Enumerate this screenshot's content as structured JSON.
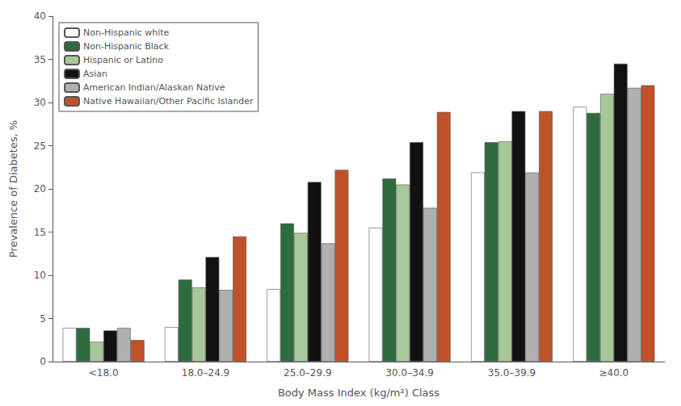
{
  "chart_data": {
    "type": "bar",
    "xlabel": "Body Mass Index (kg/m²) Class",
    "ylabel": "Prevalence of Diabetes, %",
    "categories": [
      "<18.0",
      "18.0–24.9",
      "25.0–29.9",
      "30.0–34.9",
      "35.0–39.9",
      "≥40.0"
    ],
    "series": [
      {
        "name": "Non-Hispanic white",
        "color": "#ffffff",
        "values": [
          3.9,
          4.0,
          8.4,
          15.5,
          21.9,
          29.5
        ]
      },
      {
        "name": "Non-Hispanic Black",
        "color": "#2e6b3e",
        "values": [
          3.9,
          9.5,
          16.0,
          21.2,
          25.4,
          28.8
        ]
      },
      {
        "name": "Hispanic or Latino",
        "color": "#a8c89a",
        "values": [
          2.3,
          8.6,
          14.9,
          20.5,
          25.5,
          31.0
        ]
      },
      {
        "name": "Asian",
        "color": "#111111",
        "values": [
          3.6,
          12.1,
          20.8,
          25.4,
          29.0,
          34.5
        ]
      },
      {
        "name": "American Indian/Alaskan Native",
        "color": "#b0b0b0",
        "values": [
          3.9,
          8.3,
          13.7,
          17.8,
          21.9,
          31.7
        ]
      },
      {
        "name": "Native Hawaiian/Other Pacific Islander",
        "color": "#c0522a",
        "values": [
          2.5,
          14.5,
          22.2,
          28.9,
          29.0,
          32.0
        ]
      }
    ],
    "ylim": [
      0,
      40
    ],
    "yticks": [
      0,
      5,
      10,
      15,
      20,
      25,
      30,
      35,
      40
    ],
    "grid": false,
    "legend": "upper left"
  }
}
